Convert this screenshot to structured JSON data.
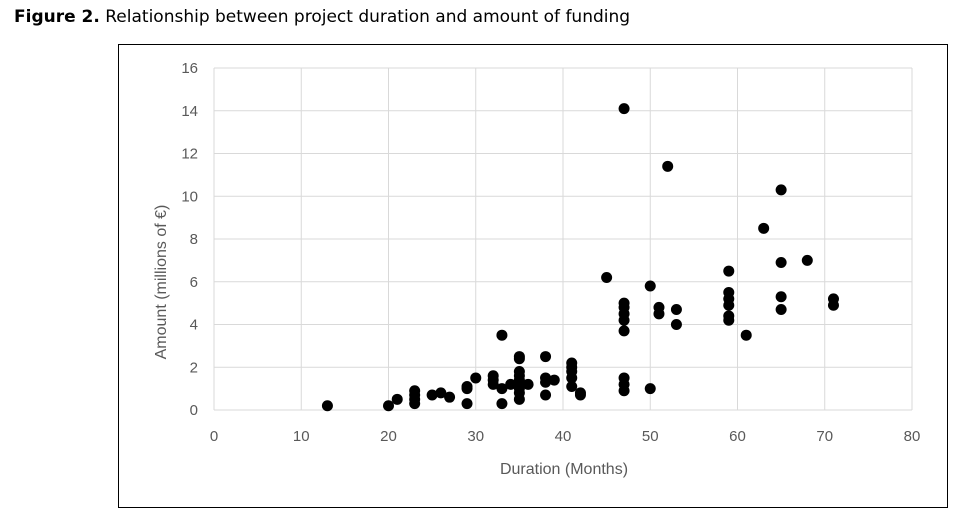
{
  "figure": {
    "label": "Figure 2.",
    "caption": "Relationship between project duration and amount of funding"
  },
  "chart_data": {
    "type": "scatter",
    "xlabel": "Duration (Months)",
    "ylabel": "Amount (millions of €)",
    "xlim": [
      0,
      80
    ],
    "ylim": [
      0,
      16
    ],
    "xticks": [
      0,
      10,
      20,
      30,
      40,
      50,
      60,
      70,
      80
    ],
    "yticks": [
      0,
      2,
      4,
      6,
      8,
      10,
      12,
      14,
      16
    ],
    "grid": true,
    "marker_color": "#000000",
    "grid_color": "#d9d9d9",
    "points": [
      [
        13,
        0.2
      ],
      [
        20,
        0.2
      ],
      [
        21,
        0.5
      ],
      [
        23,
        0.3
      ],
      [
        23,
        0.5
      ],
      [
        23,
        0.7
      ],
      [
        23,
        0.9
      ],
      [
        25,
        0.7
      ],
      [
        26,
        0.8
      ],
      [
        27,
        0.6
      ],
      [
        29,
        0.3
      ],
      [
        29,
        1.0
      ],
      [
        29,
        1.1
      ],
      [
        30,
        1.5
      ],
      [
        32,
        1.2
      ],
      [
        32,
        1.4
      ],
      [
        32,
        1.6
      ],
      [
        33,
        0.3
      ],
      [
        33,
        1.0
      ],
      [
        33,
        3.5
      ],
      [
        34,
        1.2
      ],
      [
        35,
        0.5
      ],
      [
        35,
        0.8
      ],
      [
        35,
        1.0
      ],
      [
        35,
        1.2
      ],
      [
        35,
        1.4
      ],
      [
        35,
        1.6
      ],
      [
        35,
        1.8
      ],
      [
        35,
        2.4
      ],
      [
        35,
        2.5
      ],
      [
        36,
        1.2
      ],
      [
        38,
        0.7
      ],
      [
        38,
        1.3
      ],
      [
        38,
        1.5
      ],
      [
        38,
        2.5
      ],
      [
        39,
        1.4
      ],
      [
        41,
        1.1
      ],
      [
        41,
        1.5
      ],
      [
        41,
        1.8
      ],
      [
        41,
        2.0
      ],
      [
        41,
        2.2
      ],
      [
        42,
        0.7
      ],
      [
        42,
        0.8
      ],
      [
        45,
        6.2
      ],
      [
        47,
        0.9
      ],
      [
        47,
        1.2
      ],
      [
        47,
        1.5
      ],
      [
        47,
        3.7
      ],
      [
        47,
        4.2
      ],
      [
        47,
        4.5
      ],
      [
        47,
        4.8
      ],
      [
        47,
        5.0
      ],
      [
        47,
        14.1
      ],
      [
        50,
        1.0
      ],
      [
        50,
        5.8
      ],
      [
        51,
        4.5
      ],
      [
        51,
        4.8
      ],
      [
        52,
        11.4
      ],
      [
        53,
        4.0
      ],
      [
        53,
        4.7
      ],
      [
        59,
        4.2
      ],
      [
        59,
        4.4
      ],
      [
        59,
        4.9
      ],
      [
        59,
        5.2
      ],
      [
        59,
        5.5
      ],
      [
        59,
        6.5
      ],
      [
        61,
        3.5
      ],
      [
        63,
        8.5
      ],
      [
        65,
        4.7
      ],
      [
        65,
        5.3
      ],
      [
        65,
        6.9
      ],
      [
        65,
        10.3
      ],
      [
        68,
        7.0
      ],
      [
        71,
        4.9
      ],
      [
        71,
        5.2
      ]
    ]
  }
}
